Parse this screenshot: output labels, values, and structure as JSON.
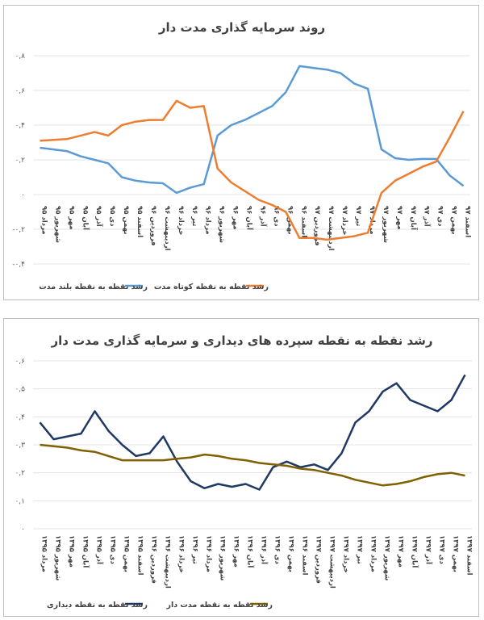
{
  "chart_data": [
    {
      "type": "line",
      "title": "روند سرمایه گذاری مدت  دار",
      "ylim": [
        -0.4,
        0.8
      ],
      "y_ticks": [
        "-۰,۴",
        "-۰,۲",
        "۰",
        "۰,۲",
        "۰,۴",
        "۰,۶",
        "۰,۸"
      ],
      "y_tick_values": [
        -0.4,
        -0.2,
        0,
        0.2,
        0.4,
        0.6,
        0.8
      ],
      "grid": true,
      "legend": "bottom",
      "categories": [
        "مرداد ۹۵",
        "شهریور ۹۵",
        "مهر ۹۵",
        "آبان ۹۵",
        "آذر ۹۵",
        "دی ۹۵",
        "بهمن ۹۵",
        "اسفند ۹۵",
        "فروردین ۹۶",
        "اردیبهشت ۹۶",
        "خرداد ۹۶",
        "تیر ۹۶",
        "مرداد ۹۶",
        "شهریور ۹۶",
        "مهر ۹۶",
        "آبان ۹۶",
        "آذر ۹۶",
        "دی ۹۶",
        "بهمن ۹۶",
        "اسفند ۹۶",
        "فروردین ۹۷",
        "اردیبهشت ۹۷",
        "خرداد ۹۷",
        "تیر ۹۷",
        "مرداد ۹۷",
        "شهریور ۹۷",
        "مهر ۹۷",
        "آبان ۹۷",
        "آذر ۹۷",
        "دی ۹۷",
        "بهمن ۹۷",
        "اسفند ۹۷"
      ],
      "series": [
        {
          "name": "رشد نقطه به نقطه بلند مدت",
          "color": "#5b9bd5",
          "values": [
            0.27,
            0.26,
            0.25,
            0.22,
            0.2,
            0.18,
            0.1,
            0.08,
            0.07,
            0.065,
            0.01,
            0.04,
            0.06,
            0.34,
            0.4,
            0.43,
            0.47,
            0.51,
            0.59,
            0.74,
            0.73,
            0.72,
            0.7,
            0.64,
            0.61,
            0.26,
            0.21,
            0.2,
            0.205,
            0.205,
            0.11,
            0.05
          ]
        },
        {
          "name": "رشد نقطه به نقطه کوتاه مدت",
          "color": "#ed7d31",
          "values": [
            0.31,
            0.315,
            0.32,
            0.34,
            0.36,
            0.34,
            0.4,
            0.42,
            0.43,
            0.43,
            0.54,
            0.5,
            0.51,
            0.15,
            0.07,
            0.02,
            -0.03,
            -0.06,
            -0.1,
            -0.25,
            -0.25,
            -0.26,
            -0.25,
            -0.24,
            -0.22,
            0.01,
            0.08,
            0.12,
            0.16,
            0.19,
            0.33,
            0.48
          ]
        }
      ]
    },
    {
      "type": "line",
      "title": "رشد نقطه به نقطه سپرده های دیداری و سرمایه گذاری مدت دار",
      "ylim": [
        0,
        0.6
      ],
      "y_ticks": [
        "۰",
        "۰,۱",
        "۰,۲",
        "۰,۳",
        "۰,۴",
        "۰,۵",
        "۰,۶"
      ],
      "y_tick_values": [
        0,
        0.1,
        0.2,
        0.3,
        0.4,
        0.5,
        0.6
      ],
      "grid": true,
      "legend": "bottom",
      "categories": [
        "مرداد ۱۳۹۵",
        "شهریور ۱۳۹۵",
        "مهر ۱۳۹۵",
        "آبان ۱۳۹۵",
        "آذر ۱۳۹۵",
        "دی ۱۳۹۵",
        "بهمن ۱۳۹۵",
        "اسفند ۱۳۹۵",
        "فروردین ۱۳۹۶",
        "اردیبهشت ۱۳۹۶",
        "خرداد ۱۳۹۶",
        "تیر ۱۳۹۶",
        "مرداد ۱۳۹۶",
        "شهریور ۱۳۹۶",
        "مهر ۱۳۹۶",
        "آبان ۱۳۹۶",
        "آذر ۱۳۹۶",
        "دی ۱۳۹۶",
        "بهمن ۱۳۹۶",
        "اسفند ۱۳۹۶",
        "فروردین ۱۳۹۷",
        "اردیبهشت ۱۳۹۷",
        "خرداد ۱۳۹۷",
        "تیر ۱۳۹۷",
        "مرداد ۱۳۹۷",
        "شهریور ۱۳۹۷",
        "مهر ۱۳۹۷",
        "آبان ۱۳۹۷",
        "آذر ۱۳۹۷",
        "دی ۱۳۹۷",
        "بهمن ۱۳۹۷",
        "اسفند ۱۳۹۷"
      ],
      "series": [
        {
          "name": "رشد نقطه به نقطه دیداری",
          "color": "#203864",
          "values": [
            0.38,
            0.32,
            0.33,
            0.34,
            0.42,
            0.35,
            0.3,
            0.26,
            0.27,
            0.33,
            0.24,
            0.17,
            0.145,
            0.16,
            0.15,
            0.16,
            0.14,
            0.22,
            0.24,
            0.22,
            0.23,
            0.21,
            0.27,
            0.38,
            0.42,
            0.49,
            0.52,
            0.46,
            0.44,
            0.42,
            0.46,
            0.55
          ]
        },
        {
          "name": "رشد نقطه به نقطه مدت دار",
          "color": "#806000",
          "values": [
            0.3,
            0.295,
            0.29,
            0.28,
            0.275,
            0.26,
            0.245,
            0.245,
            0.245,
            0.245,
            0.25,
            0.255,
            0.265,
            0.26,
            0.25,
            0.245,
            0.235,
            0.23,
            0.225,
            0.215,
            0.21,
            0.2,
            0.19,
            0.175,
            0.165,
            0.155,
            0.16,
            0.17,
            0.185,
            0.195,
            0.2,
            0.19
          ]
        }
      ]
    }
  ]
}
